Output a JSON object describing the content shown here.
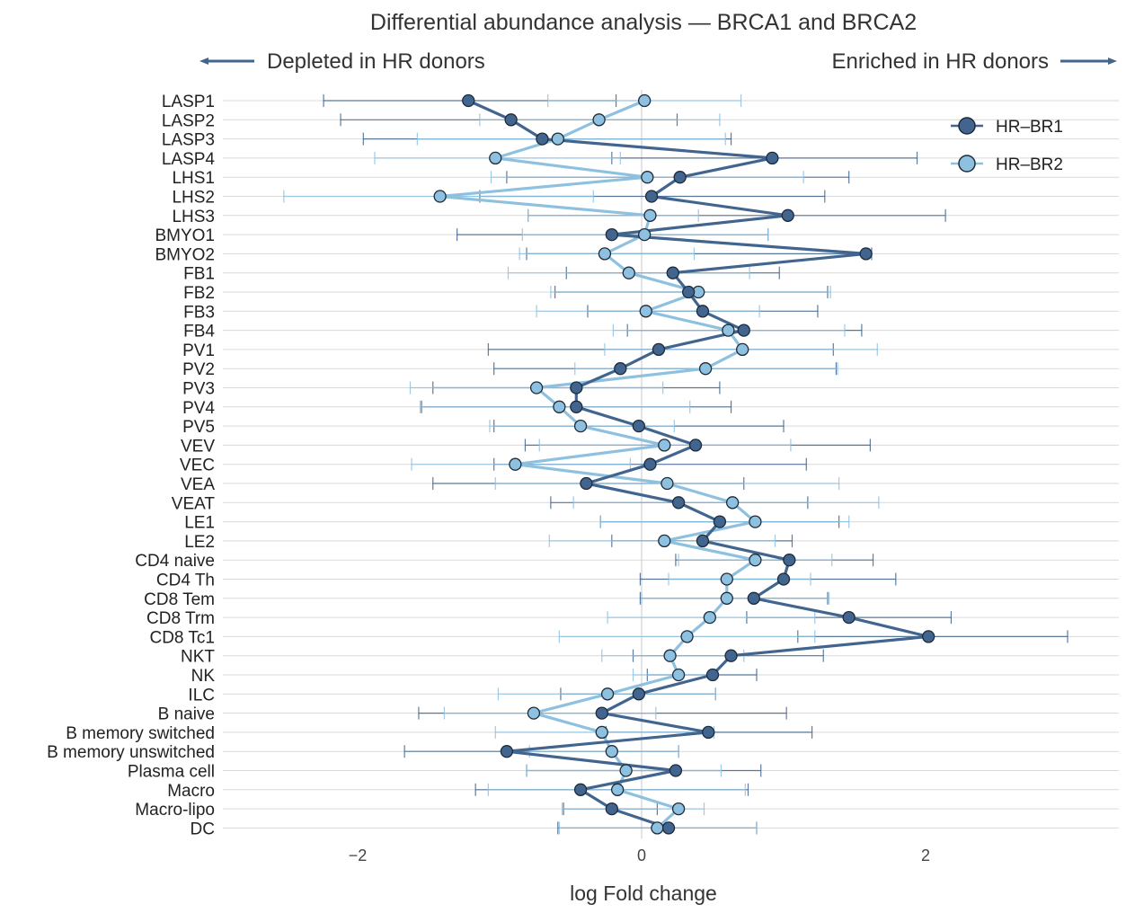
{
  "chart_data": {
    "type": "line",
    "orientation": "horizontal",
    "title": "Differential abundance analysis — BRCA1 and BRCA2",
    "left_annotation": "Depleted in HR donors",
    "right_annotation": "Enriched in HR donors",
    "xlabel": "log Fold change",
    "ylabel": "",
    "xlim": [
      -2.95,
      3.4
    ],
    "xticks": [
      -2,
      0,
      2
    ],
    "xtick_labels": [
      "−2",
      "0",
      "2"
    ],
    "categories": [
      "LASP1",
      "LASP2",
      "LASP3",
      "LASP4",
      "LHS1",
      "LHS2",
      "LHS3",
      "BMYO1",
      "BMYO2",
      "FB1",
      "FB2",
      "FB3",
      "FB4",
      "PV1",
      "PV2",
      "PV3",
      "PV4",
      "PV5",
      "VEV",
      "VEC",
      "VEA",
      "VEAT",
      "LE1",
      "LE2",
      "CD4 naive",
      "CD4 Th",
      "CD8 Tem",
      "CD8 Trm",
      "CD8 Tc1",
      "NKT",
      "NK",
      "ILC",
      "B naive",
      "B memory switched",
      "B memory unswitched",
      "Plasma cell",
      "Macro",
      "Macro-lipo",
      "DC"
    ],
    "series": [
      {
        "name": "HR–BR1",
        "color": "#41658e",
        "values": [
          -1.22,
          -0.92,
          -0.7,
          0.92,
          0.27,
          0.07,
          1.03,
          -0.21,
          1.58,
          0.22,
          0.33,
          0.43,
          0.72,
          0.12,
          -0.15,
          -0.46,
          -0.46,
          -0.02,
          0.38,
          0.06,
          -0.39,
          0.26,
          0.55,
          0.43,
          1.04,
          1.0,
          0.79,
          1.46,
          2.02,
          0.63,
          0.5,
          -0.02,
          -0.28,
          0.47,
          -0.95,
          0.24,
          -0.43,
          -0.21,
          0.19
        ],
        "ci_low": [
          -2.24,
          -2.12,
          -1.96,
          -0.21,
          -0.95,
          -1.14,
          -0.8,
          -1.3,
          -0.81,
          -0.53,
          -0.61,
          -0.38,
          -0.1,
          -1.08,
          -1.04,
          -1.47,
          -1.55,
          -1.04,
          -0.82,
          -1.04,
          -1.47,
          -0.64,
          -0.29,
          -0.21,
          0.24,
          -0.01,
          -0.01,
          0.74,
          1.1,
          -0.06,
          0.04,
          -0.57,
          -1.57,
          -0.25,
          -1.67,
          -0.81,
          -1.17,
          -0.55,
          -0.59
        ],
        "ci_high": [
          -0.18,
          0.25,
          0.63,
          1.94,
          1.46,
          1.29,
          2.14,
          0.89,
          1.62,
          0.97,
          1.31,
          1.24,
          1.55,
          1.35,
          1.37,
          0.55,
          0.63,
          1.0,
          1.61,
          1.16,
          0.72,
          1.17,
          1.39,
          1.06,
          1.63,
          1.79,
          1.31,
          2.18,
          3.0,
          1.28,
          0.81,
          0.52,
          1.02,
          1.2,
          0.26,
          0.84,
          0.75,
          0.11,
          0.81
        ]
      },
      {
        "name": "HR–BR2",
        "color": "#8ec1e0",
        "values": [
          0.02,
          -0.3,
          -0.59,
          -1.03,
          0.04,
          -1.42,
          0.06,
          0.02,
          -0.26,
          -0.09,
          0.4,
          0.03,
          0.61,
          0.71,
          0.45,
          -0.74,
          -0.58,
          -0.43,
          0.16,
          -0.89,
          0.18,
          0.64,
          0.8,
          0.16,
          0.8,
          0.6,
          0.6,
          0.48,
          0.32,
          0.2,
          0.26,
          -0.24,
          -0.76,
          -0.28,
          -0.21,
          -0.11,
          -0.17,
          0.26,
          0.11
        ],
        "ci_low": [
          -0.66,
          -1.14,
          -1.58,
          -1.88,
          -1.06,
          -2.52,
          -0.8,
          -0.84,
          -0.86,
          -0.94,
          -0.64,
          -0.74,
          -0.2,
          -0.26,
          -0.47,
          -1.63,
          -1.56,
          -1.07,
          -0.72,
          -1.62,
          -1.03,
          -0.48,
          -0.29,
          -0.65,
          0.26,
          0.19,
          0.0,
          -0.24,
          -0.58,
          -0.28,
          -0.06,
          -1.01,
          -1.39,
          -1.03,
          -0.79,
          -0.81,
          -1.08,
          -0.56,
          -0.58
        ],
        "ci_high": [
          0.7,
          0.55,
          0.59,
          -0.15,
          1.14,
          -0.34,
          0.4,
          0.89,
          0.37,
          0.76,
          1.33,
          0.83,
          1.43,
          1.66,
          1.38,
          0.15,
          0.34,
          0.23,
          1.05,
          -0.08,
          1.39,
          1.67,
          1.46,
          0.94,
          1.34,
          1.19,
          1.32,
          1.22,
          1.22,
          0.72,
          0.52,
          0.52,
          0.1,
          0.51,
          0.26,
          0.56,
          0.73,
          0.44,
          0.81
        ]
      }
    ],
    "legend": [
      "HR–BR1",
      "HR–BR2"
    ],
    "legend_position": "top-right",
    "grid": true
  }
}
